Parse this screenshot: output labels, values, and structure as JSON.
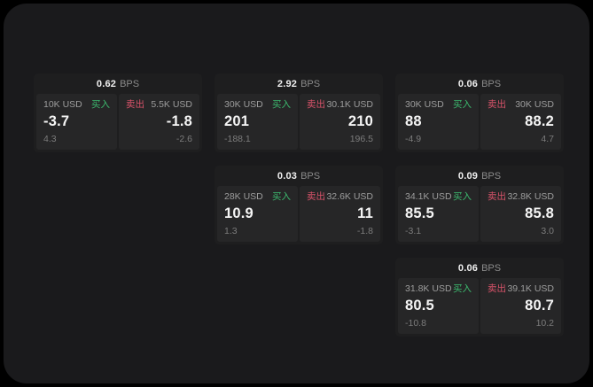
{
  "colors": {
    "outer_background": "#000000",
    "app_background": "#1a1a1c",
    "card_background": "#1e1e1f",
    "panel_background": "#262627",
    "buy_green": "#3cb96e",
    "sell_red": "#d9536a",
    "value_white": "#f5f5f5",
    "label_gray": "#9d9d9d"
  },
  "labels": {
    "bps_unit": "BPS",
    "buy": "买入",
    "sell": "卖出"
  },
  "cards": [
    {
      "bps": "0.62",
      "unit": "BPS",
      "buy": {
        "amount": "10K USD",
        "side": "买入",
        "price": "-3.7",
        "sub": "4.3"
      },
      "sell": {
        "side": "卖出",
        "amount": "5.5K USD",
        "price": "-1.8",
        "sub": "-2.6"
      }
    },
    {
      "bps": "2.92",
      "unit": "BPS",
      "buy": {
        "amount": "30K USD",
        "side": "买入",
        "price": "201",
        "sub": "-188.1"
      },
      "sell": {
        "side": "卖出",
        "amount": "30.1K USD",
        "price": "210",
        "sub": "196.5"
      }
    },
    {
      "bps": "0.06",
      "unit": "BPS",
      "buy": {
        "amount": "30K USD",
        "side": "买入",
        "price": "88",
        "sub": "-4.9"
      },
      "sell": {
        "side": "卖出",
        "amount": "30K USD",
        "price": "88.2",
        "sub": "4.7"
      }
    },
    {
      "bps": "0.03",
      "unit": "BPS",
      "buy": {
        "amount": "28K USD",
        "side": "买入",
        "price": "10.9",
        "sub": "1.3"
      },
      "sell": {
        "side": "卖出",
        "amount": "32.6K USD",
        "price": "11",
        "sub": "-1.8"
      }
    },
    {
      "bps": "0.09",
      "unit": "BPS",
      "buy": {
        "amount": "34.1K USD",
        "side": "买入",
        "price": "85.5",
        "sub": "-3.1"
      },
      "sell": {
        "side": "卖出",
        "amount": "32.8K USD",
        "price": "85.8",
        "sub": "3.0"
      }
    },
    {
      "bps": "0.06",
      "unit": "BPS",
      "buy": {
        "amount": "31.8K USD",
        "side": "买入",
        "price": "80.5",
        "sub": "-10.8"
      },
      "sell": {
        "side": "卖出",
        "amount": "39.1K USD",
        "price": "80.7",
        "sub": "10.2"
      }
    }
  ]
}
